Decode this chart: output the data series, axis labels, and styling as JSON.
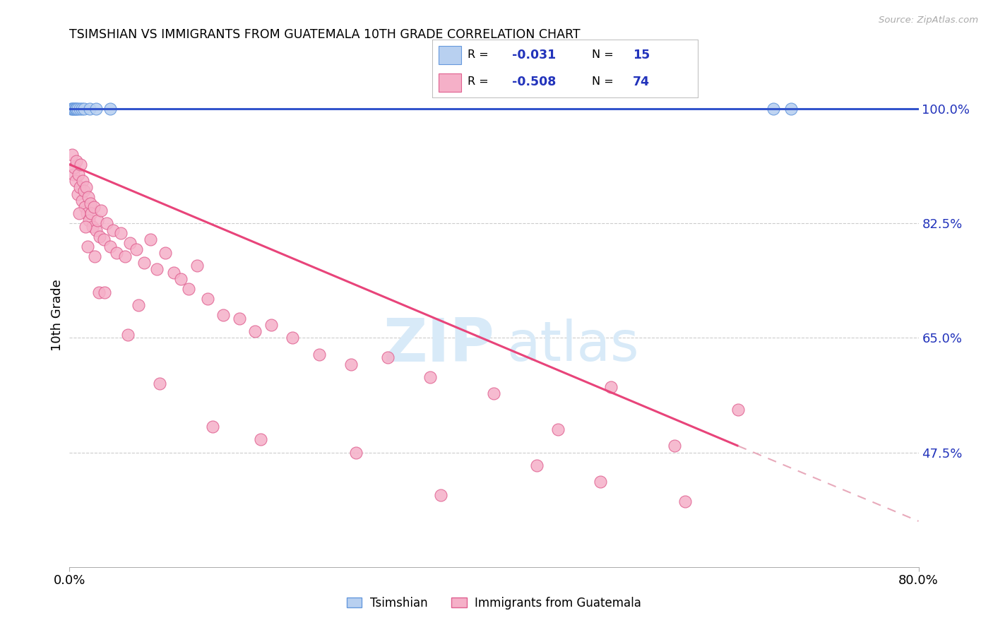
{
  "title": "TSIMSHIAN VS IMMIGRANTS FROM GUATEMALA 10TH GRADE CORRELATION CHART",
  "source": "Source: ZipAtlas.com",
  "ylabel": "10th Grade",
  "yticks": [
    100.0,
    82.5,
    65.0,
    47.5
  ],
  "ytick_labels": [
    "100.0%",
    "82.5%",
    "65.0%",
    "47.5%"
  ],
  "xmin": 0.0,
  "xmax": 80.0,
  "ymin": 30.0,
  "ymax": 107.0,
  "tsimshian_color": "#b8d0f0",
  "tsimshian_edge": "#6699dd",
  "guatemala_color": "#f5b0c8",
  "guatemala_edge": "#e06090",
  "tsimshian_line_color": "#3355cc",
  "guatemala_line_color": "#e8447a",
  "guatemala_dash_color": "#e8aabb",
  "legend_num_color": "#2233bb",
  "legend_label_color": "#2233bb",
  "tsimshian_scatter_x": [
    0.15,
    0.25,
    0.35,
    0.45,
    0.55,
    0.65,
    0.8,
    0.95,
    1.15,
    1.4,
    1.9,
    2.5,
    3.8,
    66.3,
    68.0
  ],
  "tsimshian_scatter_y": [
    100.0,
    100.0,
    100.0,
    100.0,
    100.0,
    100.0,
    100.0,
    100.0,
    100.0,
    100.0,
    100.0,
    100.0,
    100.0,
    100.0,
    100.0
  ],
  "guatemala_scatter_x": [
    0.25,
    0.35,
    0.45,
    0.55,
    0.65,
    0.75,
    0.85,
    0.95,
    1.05,
    1.15,
    1.25,
    1.35,
    1.45,
    1.55,
    1.65,
    1.75,
    1.85,
    1.95,
    2.05,
    2.15,
    2.3,
    2.5,
    2.65,
    2.85,
    3.0,
    3.2,
    3.5,
    3.8,
    4.1,
    4.4,
    4.8,
    5.2,
    5.7,
    6.3,
    7.0,
    7.6,
    8.2,
    9.0,
    9.8,
    10.5,
    11.2,
    12.0,
    13.0,
    14.5,
    16.0,
    17.5,
    19.0,
    21.0,
    23.5,
    26.5,
    30.0,
    34.0,
    40.0,
    46.0,
    51.0,
    57.0,
    63.0,
    1.5,
    2.8,
    5.5,
    8.5,
    13.5,
    18.0,
    27.0,
    35.0,
    44.0,
    50.0,
    58.0,
    0.9,
    1.7,
    2.4,
    3.3,
    6.5
  ],
  "guatemala_scatter_y": [
    93.0,
    90.0,
    91.0,
    89.0,
    92.0,
    87.0,
    90.0,
    88.0,
    91.5,
    86.0,
    89.0,
    87.5,
    85.0,
    88.0,
    84.0,
    86.5,
    83.0,
    85.5,
    84.0,
    82.0,
    85.0,
    81.5,
    83.0,
    80.5,
    84.5,
    80.0,
    82.5,
    79.0,
    81.5,
    78.0,
    81.0,
    77.5,
    79.5,
    78.5,
    76.5,
    80.0,
    75.5,
    78.0,
    75.0,
    74.0,
    72.5,
    76.0,
    71.0,
    68.5,
    68.0,
    66.0,
    67.0,
    65.0,
    62.5,
    61.0,
    62.0,
    59.0,
    56.5,
    51.0,
    57.5,
    48.5,
    54.0,
    82.0,
    72.0,
    65.5,
    58.0,
    51.5,
    49.5,
    47.5,
    41.0,
    45.5,
    43.0,
    40.0,
    84.0,
    79.0,
    77.5,
    72.0,
    70.0
  ],
  "guat_line_x0": 0.0,
  "guat_line_y0": 91.5,
  "guat_line_x1": 63.0,
  "guat_line_y1": 48.5,
  "guat_dash_x0": 63.0,
  "guat_dash_y0": 48.5,
  "guat_dash_x1": 80.0,
  "guat_dash_y1": 37.0,
  "tsim_line_y": 100.0,
  "legend_x1": "Tsimshian",
  "legend_x2": "Immigrants from Guatemala"
}
